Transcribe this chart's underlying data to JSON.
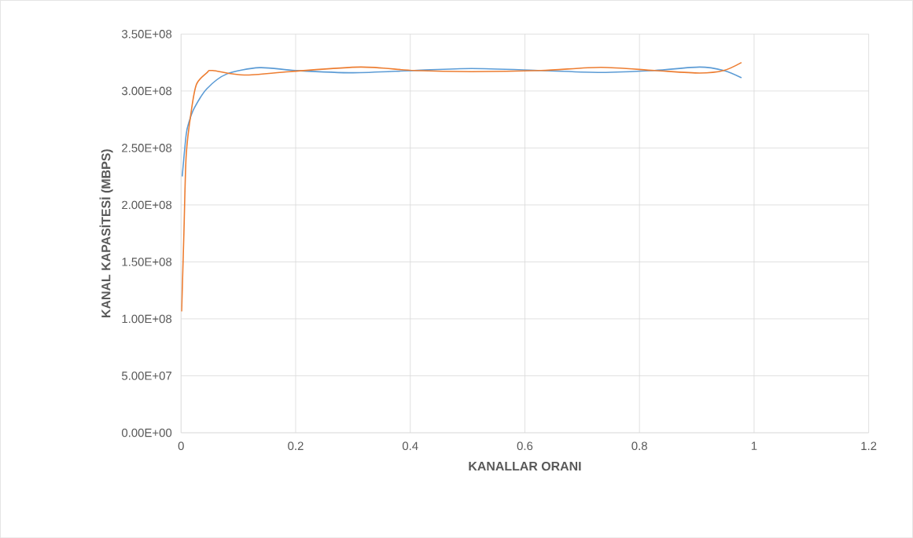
{
  "chart_data": {
    "type": "line",
    "xlabel": "KANALLAR ORANI",
    "ylabel": "KANAL KAPASİTESİ (MBPS)",
    "xlim": [
      0,
      1.2
    ],
    "xticks": [
      0,
      0.2,
      0.4,
      0.6,
      0.8,
      1,
      1.2
    ],
    "ylim": [
      0,
      350000000
    ],
    "yticks": [
      {
        "value": 0,
        "label": "0.00E+00"
      },
      {
        "value": 50000000,
        "label": "5.00E+07"
      },
      {
        "value": 100000000,
        "label": "1.00E+08"
      },
      {
        "value": 150000000,
        "label": "1.50E+08"
      },
      {
        "value": 200000000,
        "label": "2.00E+08"
      },
      {
        "value": 250000000,
        "label": "2.50E+08"
      },
      {
        "value": 300000000,
        "label": "3.00E+08"
      },
      {
        "value": 350000000,
        "label": "3.50E+08"
      }
    ],
    "grid": true,
    "marker": "none",
    "line_style": "solid",
    "series": [
      {
        "color": "#5b9bd5",
        "x": [
          0.002,
          0.009,
          0.014,
          0.023,
          0.045,
          0.08,
          0.137,
          0.2,
          0.3,
          0.407,
          0.507,
          0.628,
          0.733,
          0.826,
          0.905,
          0.947,
          0.978
        ],
        "values": [
          225000000,
          262000000,
          273000000,
          285000000,
          302000000,
          315000000,
          320500000,
          318000000,
          316000000,
          318000000,
          319700000,
          318000000,
          316300000,
          318000000,
          321000000,
          318000000,
          311600000
        ]
      },
      {
        "color": "#ed7d31",
        "x": [
          0.001,
          0.005,
          0.009,
          0.018,
          0.027,
          0.045,
          0.055,
          0.11,
          0.19,
          0.313,
          0.407,
          0.507,
          0.628,
          0.733,
          0.826,
          0.905,
          0.947,
          0.978
        ],
        "values": [
          106500000,
          176000000,
          244000000,
          283000000,
          306000000,
          316000000,
          318000000,
          314000000,
          317000000,
          321000000,
          318000000,
          317000000,
          318000000,
          320800000,
          318000000,
          315800000,
          318000000,
          325000000
        ]
      }
    ]
  }
}
